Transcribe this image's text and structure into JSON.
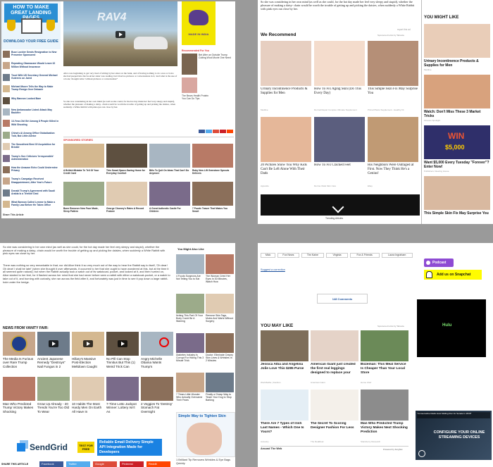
{
  "q1": {
    "ad_title": "HOW TO MAKE GREAT LANDING PAGES",
    "ad_cta": "DOWNLOAD YOUR FREE GUIDE",
    "hero_brand": "RAV4",
    "flag_label": "MADE IN INDIA",
    "left_links": [
      "Buzz Lockier Sends Resignation to New Presenter Sponsored",
      "Repeating Obamacare Would Leave 32 Million Without Insurance",
      "Trust With US Secretary General Michael Guterres on Jared",
      "Michael Moore Tells the Way to Make Trump Resign Over Debacle",
      "Why Bannon Looked Bare",
      "New Ambassador Listed Attack May Backfire",
      "13-Year-Old Girl Among 8 People Killed in Wild Shooting",
      "China's Ai Among Office Globalization Told, But Little Advice",
      "The Smoothest Best Of Acquisition for Bricklir",
      "Trump's Son Criticizes 'Irresponsible' Administration",
      "How the Amazon Echo Could Undermine Privacy",
      "Trump's Campaign Received Disappointment, After Year's Future",
      "Donald Trump's Agreement with Saudi Arabia Is a Terrible Deal",
      "What Bannon Called Lemme to Make a Family Law Before He Takes Office",
      "Share This Article"
    ],
    "body_text": [
      "Alice was beginning to get very tired of sitting by her sister on the bank, and of having nothing to do: once or twice she had peeped into the book her sister was reading, but it had no pictures or conversations in it, 'and what is the use of a book,' thought Alice 'without pictures or conversation?'",
      "So she was considering in her own mind (as well as she could, for the hot day made her feel very sleepy and stupid), whether the pleasure of making a daisy- chain would be worth the trouble of getting up and picking the daisies, when suddenly a White Rabbit with pink eyes ran close by her."
    ],
    "side_caption": "Recommended For You",
    "side_items": [
      "Bet After an Outside Trump Cutting Wool Movie One Need",
      "The Bears Health Protein You Can Do Tips"
    ],
    "sponsored_label": "SPONSORED STORIES",
    "tiles": [
      "A British Mistake To Tell Of Your Credit Card",
      "This Smart Space-Saving Home for Everyday Comfort",
      "Bills To Quit On Ideas That Can't Do Anymore",
      "Ruby New Lift Gemstone Sprouts Delivers",
      "Bone Remover New Face Made, Sleep Pattern",
      "George Clooney's Rates A Record Feature",
      "A Great Authentic Castle For Children",
      "7 Puzzle Teaser That Makes You Smart"
    ],
    "footer": "Share This Article"
  },
  "q2": {
    "top_text": "So she was considering in her own mind (as well as she could, for the hot day made her feel very sleepy and stupid), whether the pleasure of making a daisy- chain would be worth the trouble of getting up and picking the daisies, when suddenly a White Rabbit with pink eyes ran close by her.",
    "report_ad": "report this ad",
    "recommend": "We Recommend",
    "sponsored_by": "Sponsored Links by Taboola",
    "grid": [
      {
        "title": "Urinary Incontinence Products & Supplies for Men",
        "src": "Medline"
      },
      {
        "title": "How To Fix Aging Skin (Do This Every Day)",
        "src": "Dermal Repair Complex Ultimate Supplement"
      },
      {
        "title": "This Simple Skin Fix May Surprise You",
        "src": "Primal Plants Supplement - Healthy Fit"
      },
      {
        "title": "20 Pictures Show You Why Kids Can't Be Left Alone With Their Dads",
        "src": "Appostle"
      },
      {
        "title": "How To Fix Cracked Feet",
        "src": "Derma Vitals Skin Care"
      },
      {
        "title": "His Neighbors Were Outraged at First. Now They Think He's a Genius!",
        "src": "Ebay"
      }
    ],
    "trending": "Trending Articles",
    "might_like": "YOU MIGHT LIKE",
    "side": [
      {
        "title": "Urinary Incontinence Products & Supplies for Men",
        "src": "Medline"
      },
      {
        "title": "Watch: Don't Miss These 3 Market Tricks",
        "src": "Finance Spotlight"
      },
      {
        "title": "Want $5,000 Every Tuesday \"Forever\"? Enter Now!",
        "src": "Publishers Clearing House"
      },
      {
        "title": "This Simple Skin Fix May Surprise You",
        "src": ""
      }
    ],
    "win": "WIN",
    "win_amount": "$5,000"
  },
  "q3": {
    "para1": "So she was considering in her own mind (as well as she could, for the hot day made her feel very sleepy and stupid), whether the pleasure of making a daisy- chain would be worth the trouble of getting up and picking the daisies, when suddenly a White Rabbit with pink eyes ran close by her.",
    "para2": "There was nothing so very remarkable in that; nor did Alice think it so very much out of the way to hear the Rabbit say to itself, 'Oh dear! Oh dear! I shall be late!' (when she thought it over afterwards, it occurred to her that she ought to have wondered at this, but at the time it all seemed quite natural); but when the Rabbit actually took a watch out of its waistcoat- pocket, and looked at it, and then hurried on, Alice started to her feet, for it flashed across her mind that she had never before seen a rabbit with either a waistcoat-pocket, or a watch to take out of it, and burning with curiosity, she ran across the field after it, and fortunately was just in time to see it pop down a large rabbit-hole under the hedge.",
    "side_head": "You Might Also Like",
    "side_tiles": [
      "4 Foods Surgeons Are Not Telling You to Eat",
      "The Woman Cried Her Eyes In 30 Minutes, Watch How",
      "Itching This Part Of Your Body Could Be A Warning",
      "Remove Skin Tags, Moles And Warts Without Surgery",
      "Diabetes Industry Is Corrupt For Hiding This 3 Minute Trick",
      "Doctor: Eliminate Crepey Skin Lines & Wrinkles In 2 Minutes",
      "7 Times Little Wonder Who Actually Overcame Their Fears",
      "Finally a Cheap Way to Teach Your Dog to Stop Barking"
    ],
    "news_head": "NEWS FROM VANITY FAIR:",
    "news": [
      "The Media Is Furious over Rare Trump Collection",
      "Ancient Japanese Remedy \"Destroys\" Nail Fungus in 2",
      "Hillary's Massive Post-Election Meltdown Caught",
      "No Pill Can Stop Tinnitus But This (1) Weird Trick Can",
      "Angry Michelle Obama Wants Trump's",
      "Man Who Predicted Trump Victory Makes Shocking",
      "Grow Up Already - 20 Trends You're Too Old To Wear",
      "10 Habits The Most Hardy Men On Earth All Have In",
      "7-Time Lotto Jackpot Winner: Lottery Isn't As",
      "2 Veggies To 'Destroy' Stomach Fat Overnight"
    ],
    "sendgrid": "SendGrid",
    "sg_test": "TEST FOR FREE",
    "sg_tag": "Reliable Email Delivery Simple API Integration Made for Developers",
    "skin_ad": "Simple Way to Tighten Skin",
    "brilliant": "1 Brilliant Tip Removes Wrinkles & Eye Bags Quickly",
    "share_label": "SHARE THIS ARTICLE",
    "share": [
      "Facebook",
      "Twitter",
      "Google",
      "Pinterest",
      "Reddit"
    ]
  },
  "q4": {
    "tags": [
      "Mick",
      "Fox News",
      "Tim Kaine",
      "Virginia",
      "Fox & Friends",
      "Laura Ingraham"
    ],
    "correction": "Suggest a correction",
    "comments": "148 Comments",
    "may_like": "YOU MAY LIKE",
    "sponsored": "Sponsored Links by Taboola",
    "podcast": "Podcast",
    "snapchat": "Add us on Snapchat",
    "grid": [
      {
        "title": "Jessica Alba and Angelina Jolie Love This $285 Purse",
        "src": "WorldSelfie | Fashion"
      },
      {
        "title": "American Giant just created the first real leggings designed to replace your",
        "src": "American Giant"
      },
      {
        "title": "Bozeman: This Meal Service Is Cheaper Than Your Local Store",
        "src": "Home Chef"
      },
      {
        "title": "There Are 7 Types of Irish Last Names - Which One Is Yours?",
        "src": "Ancestry"
      },
      {
        "title": "The Secret To Scoring Designer Fashion For Less",
        "src": "The RealReal"
      },
      {
        "title": "Man Who Predicted Trump Victory Makes Next Shocking Prediction",
        "src": "Stansberry Research"
      }
    ],
    "around": "Around The Web",
    "powered": "Powered by ZergNet",
    "video_caption": "\"Conservative Radio Host Mulling Run for Senate In 2018\"",
    "video_overlay": "CONFIGURE YOUR ONLINE STREAMING DEVICES",
    "hulu_caption": "Hulu"
  },
  "colors": {
    "facebook": "#3b5998",
    "twitter": "#55acee",
    "google": "#dd4b39",
    "pinterest": "#cb2027",
    "reddit": "#ff4500",
    "snapchat": "#fffc00",
    "sendgrid": "#1a82e2"
  }
}
